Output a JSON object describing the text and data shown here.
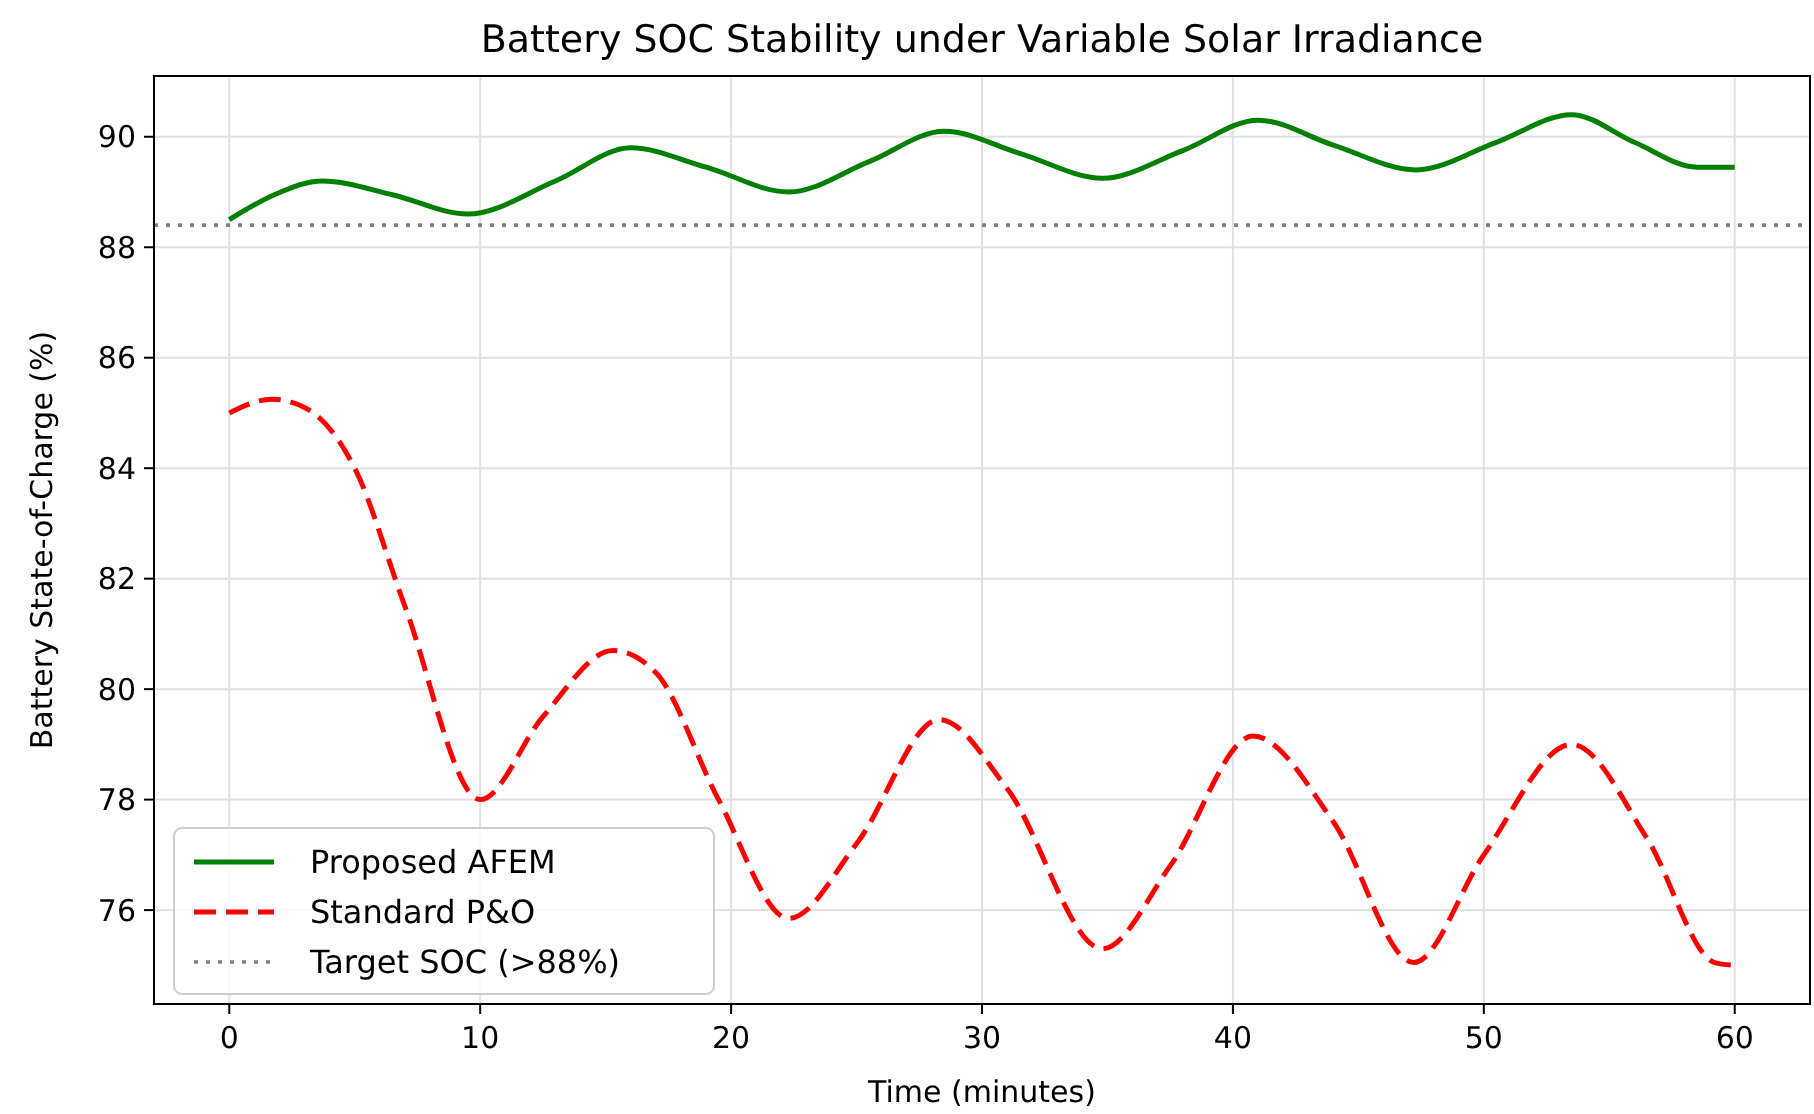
{
  "chart_data": {
    "type": "line",
    "title": "Battery SOC Stability under Variable Solar Irradiance",
    "xlabel": "Time (minutes)",
    "ylabel": "Battery State-of-Charge (%)",
    "xlim": [
      -3,
      63
    ],
    "xticks": [
      0,
      10,
      20,
      30,
      40,
      50,
      60
    ],
    "ylim": [
      74.3,
      91.1
    ],
    "yticks": [
      76,
      78,
      80,
      82,
      84,
      86,
      88,
      90
    ],
    "grid": true,
    "legend": "bottom left",
    "series": [
      {
        "name": "Proposed AFEM",
        "color": "#008000",
        "line_style": "solid",
        "x": [
          0,
          1.8,
          3.7,
          6.5,
          9.5,
          13,
          16,
          19,
          22.3,
          25.5,
          28.5,
          31.5,
          34.8,
          38,
          41,
          44,
          47.3,
          50.5,
          53.5,
          56,
          58.5,
          60
        ],
        "values": [
          88.5,
          88.95,
          89.2,
          88.95,
          88.6,
          89.2,
          89.8,
          89.45,
          89.0,
          89.55,
          90.1,
          89.7,
          89.25,
          89.75,
          90.3,
          89.85,
          89.4,
          89.9,
          90.4,
          89.9,
          89.45,
          89.45
        ]
      },
      {
        "name": "Standard P&O",
        "color": "#ff0000",
        "line_style": "dashed",
        "x": [
          0,
          1.7,
          3,
          5,
          7,
          10,
          12.5,
          15.3,
          17,
          19.5,
          22.3,
          25,
          28.3,
          31,
          34.8,
          37.5,
          40.8,
          44,
          47.2,
          50,
          53.5,
          56.5,
          59.2,
          60
        ],
        "values": [
          85.0,
          85.25,
          85.1,
          84.0,
          81.5,
          78.0,
          79.5,
          80.7,
          80.3,
          78.0,
          75.85,
          77.2,
          79.45,
          78.2,
          75.3,
          76.8,
          79.15,
          77.6,
          75.05,
          77.0,
          79.0,
          77.3,
          75.05,
          75.0
        ]
      }
    ],
    "ref_lines": [
      {
        "axis": "y",
        "value": 88.4,
        "label": "Target SOC (>88%)",
        "color": "#808080",
        "line_style": "dotted"
      }
    ]
  }
}
